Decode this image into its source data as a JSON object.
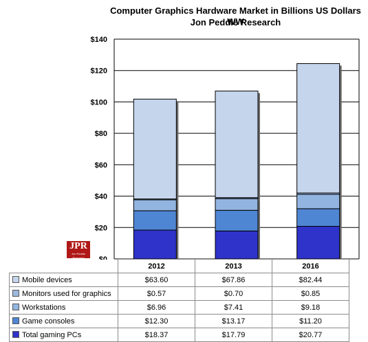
{
  "title_line1": "Computer Graphics Hardware Market in Billions US Dollars WW",
  "title_line2": "Jon Peddie Research",
  "logo_text": "JPR",
  "logo_subtext": "Jon Peddie Research",
  "colors": {
    "mobile": "#c5d5ec",
    "monitors": "#9db8dc",
    "workstations": "#92b4e0",
    "consoles": "#4f86d4",
    "pcs": "#2f33c9"
  },
  "chart_data": {
    "type": "bar",
    "stacked": true,
    "categories": [
      "2012",
      "2013",
      "2016"
    ],
    "series": [
      {
        "name": "Total gaming PCs",
        "values": [
          18.37,
          17.79,
          20.77
        ],
        "labels": [
          "$18.37",
          "$17.79",
          "$20.77"
        ]
      },
      {
        "name": "Game consoles",
        "values": [
          12.3,
          13.17,
          11.2
        ],
        "labels": [
          "$12.30",
          "$13.17",
          "$11.20"
        ]
      },
      {
        "name": "Workstations",
        "values": [
          6.96,
          7.41,
          9.18
        ],
        "labels": [
          "$6.96",
          "$7.41",
          "$9.18"
        ]
      },
      {
        "name": "Monitors used for graphics",
        "values": [
          0.57,
          0.7,
          0.85
        ],
        "labels": [
          "$0.57",
          "$0.70",
          "$0.85"
        ]
      },
      {
        "name": "Mobile devices",
        "values": [
          63.6,
          67.86,
          82.44
        ],
        "labels": [
          "$63.60",
          "$67.86",
          "$82.44"
        ]
      }
    ],
    "ylim": [
      0,
      140
    ],
    "yticks": [
      "$0",
      "$20",
      "$40",
      "$60",
      "$80",
      "$100",
      "$120",
      "$140"
    ],
    "grid": true
  }
}
